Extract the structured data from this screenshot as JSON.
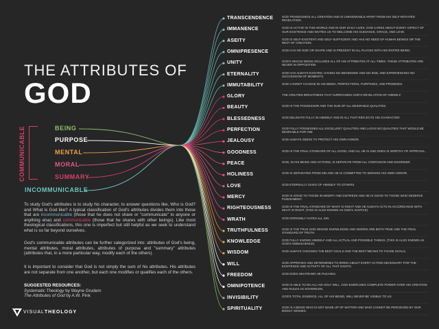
{
  "title": {
    "line1": "THE ATTRIBUTES OF",
    "line2": "GOD"
  },
  "communicable_label": "COMMUNICABLE",
  "categories": [
    {
      "label": "BEING",
      "color": "#8fc06a"
    },
    {
      "label": "PURPOSE",
      "color": "#ffffff"
    },
    {
      "label": "MENTAL",
      "color": "#f0a04a"
    },
    {
      "label": "MORAL",
      "color": "#e8558a"
    },
    {
      "label": "SUMMARY",
      "color": "#d8406a"
    },
    {
      "label": "INCOMMUNICABLE",
      "color": "#6fc6c0"
    }
  ],
  "intro": {
    "p1_a": "To study God's attributes is to study his character, to answer questions like, Who is God? and What is God like? A typical classification of God's attributes divides them into those that are ",
    "p1_incomm": "incommunicable",
    "p1_b": " (those that he does not share or \"communicate\" to anyone or anything else) and ",
    "p1_comm": "communicable",
    "p1_c": " (those that he shares with other beings). Like most theological classifications, this one is imperfect but still helpful as we seek to understand what is so far beyond ourselves.",
    "p2": "God's communicable attributes can be further categorized into: attributes of God's being, mental attributes, moral attributes, attributes of purpose and \"summary\" attributes (attributes that, in a more particular way, modify each of the others).",
    "p3": "It is important to consider that God is not simply the sum of his attributes. His attributes are not separate from one another, but each one modifies or qualifies each of the others."
  },
  "resources": {
    "heading": "SUGGESTED RESOURCES:",
    "r1_title": "Systematic Theology",
    "r1_by": " by Wayne Grudem",
    "r2_title": "The Attributes of God",
    "r2_by": " by A.W. Pink"
  },
  "logo": {
    "light": "VISUAL",
    "bold": "THEOLOGY"
  },
  "attributes": [
    {
      "name": "TRANSCENDENCE",
      "color": "#6fc6c0",
      "desc": "God transcends all creation and is unknowable apart from his self-initiated revelation."
    },
    {
      "name": "IMMANENCE",
      "color": "#6fc6c0",
      "desc": "God is active in this world and in our daily lives. God cares about every aspect of our existence and invites us to welcome his guidance, grace, and love."
    },
    {
      "name": "ASEITY",
      "color": "#6fc6c0",
      "desc": "God is self-existent and self-sufficient and has no need of human beings or the rest of creation."
    },
    {
      "name": "OMNIPRESENCE",
      "color": "#6fc6c0",
      "desc": "God has no size or shape and is present in all places with his entire being."
    },
    {
      "name": "UNITY",
      "color": "#6fc6c0",
      "desc": "God's whole being includes all of his attributes at all times. These attributes are never in opposition."
    },
    {
      "name": "ETERNALITY",
      "color": "#6fc6c0",
      "desc": "God has always existed, having no beginning and no end, and experiencing no succession of moments."
    },
    {
      "name": "IMMUTABILITY",
      "color": "#6fc6c0",
      "desc": "God cannot change in his being, perfections, purposes, and promises."
    },
    {
      "name": "GLORY",
      "color": "#d8406a",
      "desc": "The created brightness that surrounds God's revelation of himself."
    },
    {
      "name": "BEAUTY",
      "color": "#d8406a",
      "desc": "God is the possessor and the sum of all desirable qualities."
    },
    {
      "name": "BLESSEDNESS",
      "color": "#d8406a",
      "desc": "God delights fully in himself and in all that reflects his character."
    },
    {
      "name": "PERFECTION",
      "color": "#d8406a",
      "desc": "God fully possesses all excellent qualities and lacks no qualities that would be desirable for him."
    },
    {
      "name": "JEALOUSY",
      "color": "#e8558a",
      "desc": "God always seeks to protect his own honor."
    },
    {
      "name": "GOODNESS",
      "color": "#e8558a",
      "desc": "God is the final standard of all good, and all he is and does is worthy of approval."
    },
    {
      "name": "PEACE",
      "color": "#e8558a",
      "desc": "God, in his being and actions, is separate from all confusion and disorder."
    },
    {
      "name": "HOLINESS",
      "color": "#e8558a",
      "desc": "God is separated from sin and he is committed to seeking his own honor."
    },
    {
      "name": "LOVE",
      "color": "#e8558a",
      "desc": "God eternally gives of himself to others."
    },
    {
      "name": "MERCY",
      "color": "#e8558a",
      "desc": "God is good to those in misery and distress and he is good to those who deserve punishment."
    },
    {
      "name": "RIGHTEOUSNESS",
      "color": "#e8558a",
      "desc": "God is the final standard of what is right and he always acts in accordance with what is right. (This is also known as God's justice)"
    },
    {
      "name": "WRATH",
      "color": "#e8558a",
      "desc": "God intensely hates all sin."
    },
    {
      "name": "TRUTHFULNESS",
      "color": "#f0a04a",
      "desc": "God is the true God whose knowledge and words are both true and the final standard of truth."
    },
    {
      "name": "KNOWLEDGE",
      "color": "#f0a04a",
      "desc": "God fully knows himself and all actual and possible things. (This is also known as God's omniscience)"
    },
    {
      "name": "WISDOM",
      "color": "#f0a04a",
      "desc": "God always chooses the best goals and the best means to those goals."
    },
    {
      "name": "WILL",
      "color": "#ffffff",
      "desc": "God approves and determines to bring about every action necessary for the existence and activity of all that exists."
    },
    {
      "name": "FREEDOM",
      "color": "#ffffff",
      "desc": "God does whatever he pleases."
    },
    {
      "name": "OMNIPOTENCE",
      "color": "#ffffff",
      "desc": "God is able to do all his holy will. God exercises complete power over his creation and rules as sovereign."
    },
    {
      "name": "INVISIBILITY",
      "color": "#8fc06a",
      "desc": "God's total essence, all of his being, will never be visible to us."
    },
    {
      "name": "SPIRITUALITY",
      "color": "#8fc06a",
      "desc": "God is a being who is not made up of matter and who cannot be perceived by our bodily senses."
    }
  ]
}
